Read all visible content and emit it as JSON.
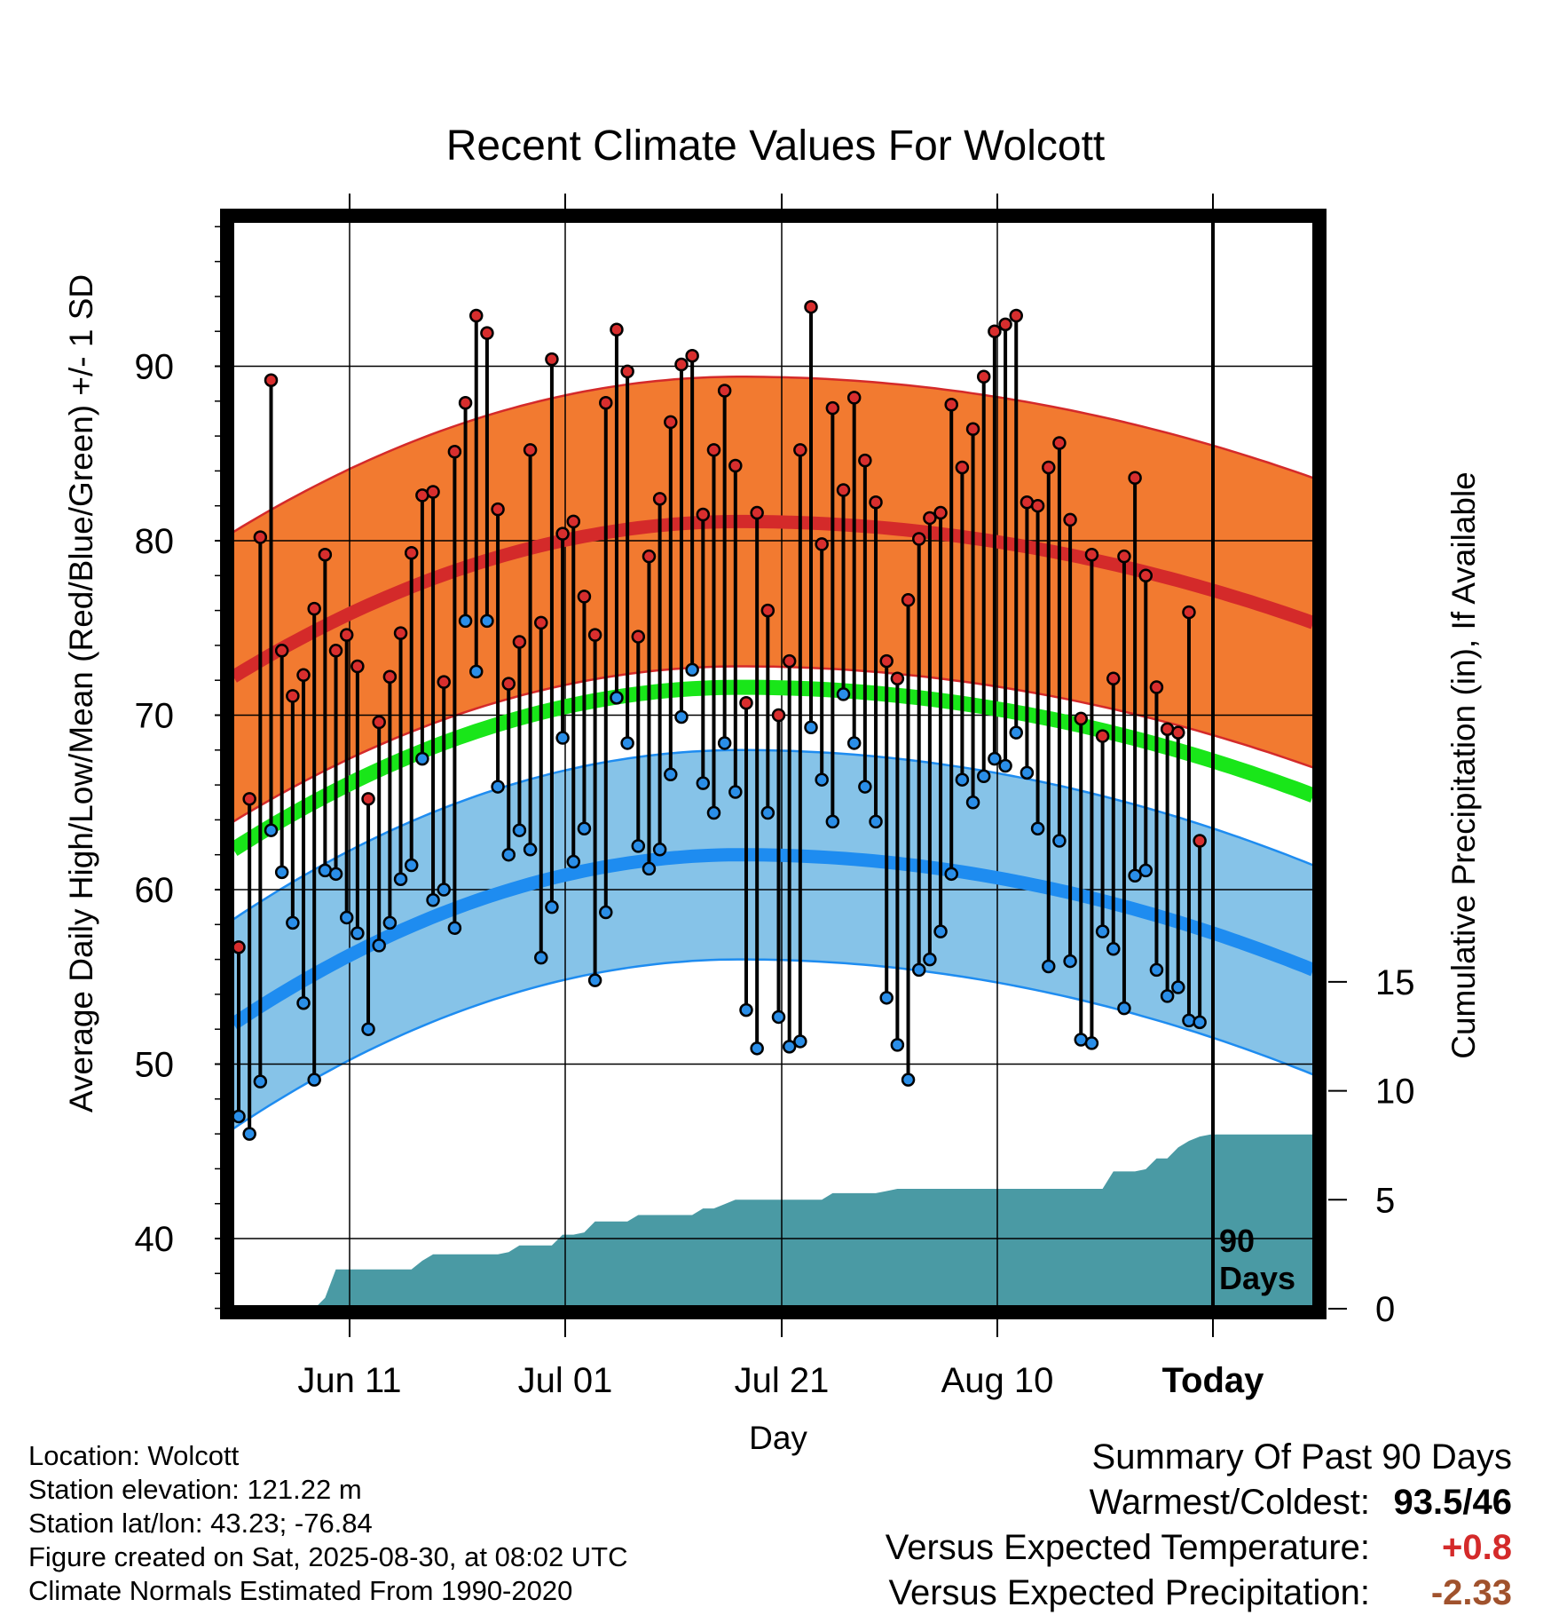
{
  "chart_data": {
    "type": "line",
    "title": "Recent Climate Values For Wolcott",
    "xlabel": "Day",
    "ylabel": "Average Daily High/Low/Mean (Red/Blue/Green) +/- 1 SD",
    "y2label": "Cumulative Precipitation (in), If Available",
    "ylim": [
      35,
      99
    ],
    "y2lim": [
      0,
      20
    ],
    "yticks": [
      40,
      50,
      60,
      70,
      80,
      90
    ],
    "y2ticks": [
      0,
      5,
      10,
      15
    ],
    "xticks": [
      "Jun 11",
      "Jul 01",
      "Jul 21",
      "Aug 10",
      "Today"
    ],
    "days_window_label": [
      "90",
      "Days"
    ],
    "grid": true,
    "observed_high": [
      56.7,
      65.2,
      80.2,
      89.2,
      73.7,
      71.1,
      72.3,
      76.1,
      79.2,
      73.7,
      74.6,
      72.8,
      65.2,
      69.6,
      72.2,
      74.7,
      79.3,
      82.6,
      82.8,
      71.9,
      85.1,
      87.9,
      92.9,
      91.9,
      81.8,
      71.8,
      74.2,
      85.2,
      75.3,
      90.4,
      80.4,
      81.1,
      76.8,
      74.6,
      87.9,
      92.1,
      89.7,
      74.5,
      79.1,
      82.4,
      86.8,
      90.1,
      90.6,
      81.5,
      85.2,
      88.6,
      84.3,
      70.7,
      81.6,
      76.0,
      70.0,
      73.1,
      85.2,
      93.4,
      79.8,
      87.6,
      82.9,
      88.2,
      84.6,
      82.2,
      73.1,
      72.1,
      76.6,
      80.1,
      81.3,
      81.6,
      87.8,
      84.2,
      86.4,
      89.4,
      92.0,
      92.4,
      92.9,
      82.2,
      82.0,
      84.2,
      85.6,
      81.2,
      69.8,
      79.2,
      68.8,
      72.1,
      79.1,
      83.6,
      78.0,
      71.6,
      69.2,
      69.0,
      75.9,
      62.8
    ],
    "observed_low": [
      47.0,
      46.0,
      49.0,
      63.4,
      61.0,
      58.1,
      53.5,
      49.1,
      61.1,
      60.9,
      58.4,
      57.5,
      52.0,
      56.8,
      58.1,
      60.6,
      61.4,
      67.5,
      59.4,
      60.0,
      57.8,
      75.4,
      72.5,
      75.4,
      65.9,
      62.0,
      63.4,
      62.3,
      56.1,
      59.0,
      68.7,
      61.6,
      63.5,
      54.8,
      58.7,
      71.0,
      68.4,
      62.5,
      61.2,
      62.3,
      66.6,
      69.9,
      72.6,
      66.1,
      64.4,
      68.4,
      65.6,
      53.1,
      50.9,
      64.4,
      52.7,
      51.0,
      51.3,
      69.3,
      66.3,
      63.9,
      71.2,
      68.4,
      65.9,
      63.9,
      53.8,
      51.1,
      49.1,
      55.4,
      56.0,
      57.6,
      60.9,
      66.3,
      65.0,
      66.5,
      67.5,
      67.1,
      69.0,
      66.7,
      63.5,
      55.6,
      62.8,
      55.9,
      51.4,
      51.2,
      57.6,
      56.6,
      53.2,
      60.8,
      61.1,
      55.4,
      53.9,
      54.4,
      52.5,
      52.4
    ],
    "normal_high": {
      "start": 72.2,
      "peak": 81.1,
      "end": 75.3
    },
    "normal_mean": {
      "start": 62.3,
      "peak": 71.6,
      "end": 65.4
    },
    "normal_low": {
      "start": 52.3,
      "peak": 62.0,
      "end": 55.4
    },
    "sd_high": 8.3,
    "sd_low": 6.0,
    "cumulative_precip": [
      0,
      0,
      0,
      0,
      0,
      0,
      0,
      0,
      0.5,
      1.8,
      1.8,
      1.8,
      1.8,
      1.8,
      1.8,
      1.8,
      1.8,
      2.2,
      2.5,
      2.5,
      2.5,
      2.5,
      2.5,
      2.5,
      2.5,
      2.6,
      2.9,
      2.9,
      2.9,
      2.9,
      3.4,
      3.4,
      3.5,
      4.0,
      4.0,
      4.0,
      4.0,
      4.3,
      4.3,
      4.3,
      4.3,
      4.3,
      4.3,
      4.6,
      4.6,
      4.8,
      5.0,
      5.0,
      5.0,
      5.0,
      5.0,
      5.0,
      5.0,
      5.0,
      5.0,
      5.3,
      5.3,
      5.3,
      5.3,
      5.3,
      5.4,
      5.5,
      5.5,
      5.5,
      5.5,
      5.5,
      5.5,
      5.5,
      5.5,
      5.5,
      5.5,
      5.5,
      5.5,
      5.5,
      5.5,
      5.5,
      5.5,
      5.5,
      5.5,
      5.5,
      5.5,
      6.3,
      6.3,
      6.3,
      6.4,
      6.9,
      6.9,
      7.4,
      7.7,
      7.9,
      8.0
    ],
    "colors": {
      "high_band": "#f27a30",
      "high_line": "#d42a2a",
      "high_dot": "#d82e2e",
      "mean_line": "#19e619",
      "low_band": "#86c3e8",
      "low_line": "#1e8cf0",
      "low_dot": "#2a8ee8",
      "precip": "#4a9aa4"
    }
  },
  "footer": [
    "Location: Wolcott",
    "Station elevation: 121.22 m",
    "Station lat/lon: 43.23; -76.84",
    "Figure created on Sat, 2025-08-30, at 08:02 UTC",
    "Climate Normals Estimated From 1990-2020"
  ],
  "summary": {
    "heading": "Summary Of Past 90 Days",
    "warm_cold_label": "Warmest/Coldest:",
    "warm_cold_value": "93.5/46",
    "temp_label": "Versus Expected Temperature:",
    "temp_value": "+0.8",
    "temp_color": "#d42a2a",
    "precip_label": "Versus Expected Precipitation:",
    "precip_value": "-2.33",
    "precip_color": "#a0522d"
  }
}
